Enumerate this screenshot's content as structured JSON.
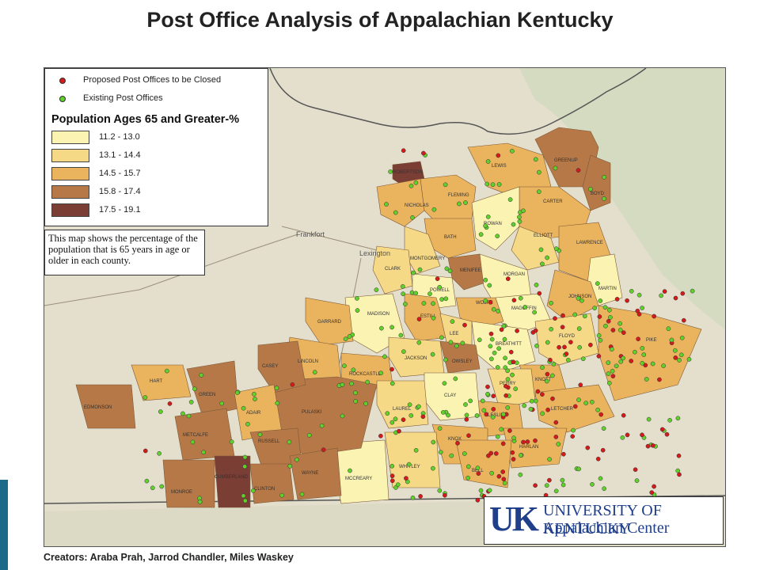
{
  "title": "Post Office Analysis of Appalachian Kentucky",
  "legend": {
    "closed_label": "Proposed Post Offices to be Closed",
    "existing_label": "Existing Post Offices",
    "closed_color": "#d41a1a",
    "existing_color": "#5fd12a",
    "pop_title": "Population Ages 65 and Greater-%",
    "classes": [
      {
        "range": "11.2 - 13.0",
        "color": "#fbf3b2"
      },
      {
        "range": "13.1 - 14.4",
        "color": "#f5d986"
      },
      {
        "range": "14.5 - 15.7",
        "color": "#eab35e"
      },
      {
        "range": "15.8 - 17.4",
        "color": "#b67847"
      },
      {
        "range": "17.5 - 19.1",
        "color": "#7b3e35"
      }
    ]
  },
  "note": "This map shows the percentage of the population that is 65 years in age or older in each county.",
  "logo": {
    "mark": "UK",
    "line1": "UNIVERSITY OF KENTUCKY",
    "line2": "Appalachian Center"
  },
  "creators": "Creators: Araba Prah, Jarrod Chandler, Miles Waskey",
  "cities": [
    "Frankfort",
    "Lexington"
  ],
  "counties": [
    "LEWIS",
    "GREENUP",
    "BOYD",
    "FLEMING",
    "CARTER",
    "NICHOLAS",
    "ROWAN",
    "ELLIOTT",
    "LAWRENCE",
    "BATH",
    "MONTGOMERY",
    "MENIFEE",
    "MORGAN",
    "CLARK",
    "POWELL",
    "JOHNSON",
    "MARTIN",
    "MAGOFFIN",
    "WOLFE",
    "MADISON",
    "ESTILL",
    "LEE",
    "BREATHITT",
    "GARRARD",
    "FLOYD",
    "PIKE",
    "OWSLEY",
    "KNOTT",
    "JACKSON",
    "LINCOLN",
    "ROCKCASTLE",
    "PERRY",
    "LESLIE",
    "CLAY",
    "LAUREL",
    "LETCHER",
    "HARLAN",
    "KNOX",
    "BELL",
    "WHITLEY",
    "MCCREARY",
    "PULASKI",
    "CASEY",
    "GREEN",
    "HART",
    "EDMONSON",
    "ADAIR",
    "RUSSELL",
    "METCALFE",
    "WAYNE",
    "CLINTON",
    "CUMBERLAND",
    "MONROE",
    "ROBERTSON"
  ]
}
